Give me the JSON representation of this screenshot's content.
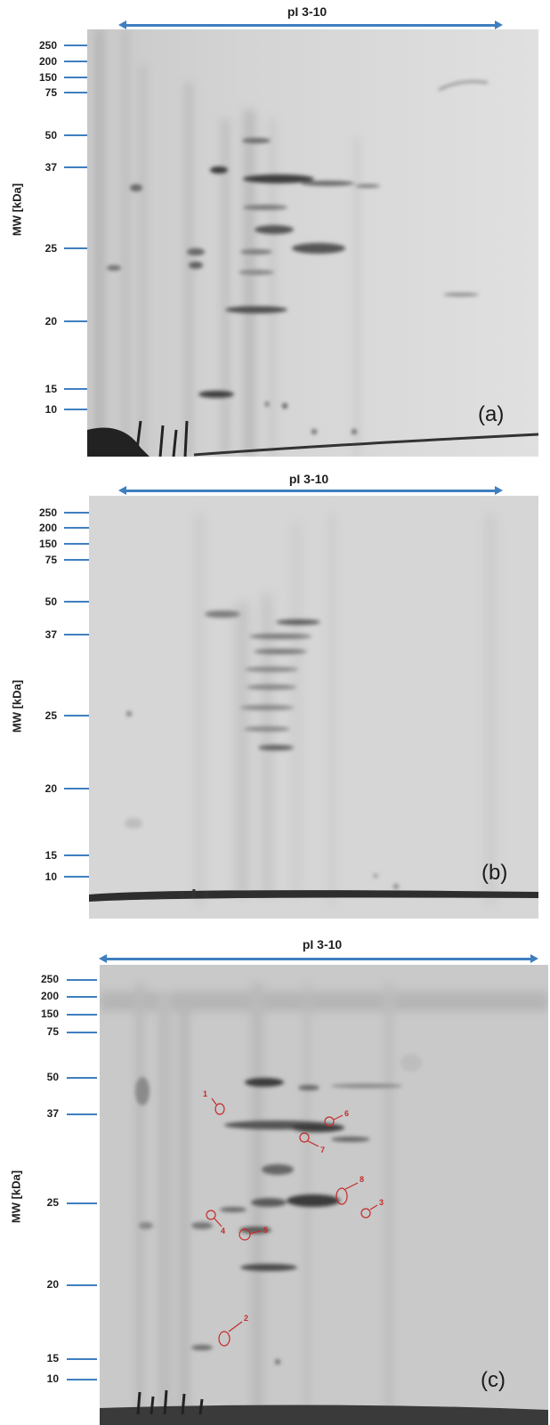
{
  "panels": [
    {
      "id": "a",
      "ph_label": "pI 3-10",
      "y_axis_label": "MW [kDa]",
      "panel_label": "(a)",
      "mw_markers": [
        "250",
        "200",
        "150",
        "75",
        "50",
        "37",
        "25",
        "20",
        "15",
        "10"
      ]
    },
    {
      "id": "b",
      "ph_label": "pI 3-10",
      "y_axis_label": "MW [kDa]",
      "panel_label": "(b)",
      "mw_markers": [
        "250",
        "200",
        "150",
        "75",
        "50",
        "37",
        "25",
        "20",
        "15",
        "10"
      ]
    },
    {
      "id": "c",
      "ph_label": "pI 3-10",
      "y_axis_label": "MW [kDa]",
      "panel_label": "(c)",
      "mw_markers": [
        "250",
        "200",
        "150",
        "75",
        "50",
        "37",
        "25",
        "20",
        "15",
        "10"
      ],
      "spot_labels": [
        "1",
        "2",
        "3",
        "4",
        "5",
        "6",
        "7",
        "8"
      ]
    }
  ],
  "colors": {
    "axis_accent": "#3f7fbf",
    "spot_marker": "#c42b2b",
    "gel_background": "#d9d9d9"
  }
}
